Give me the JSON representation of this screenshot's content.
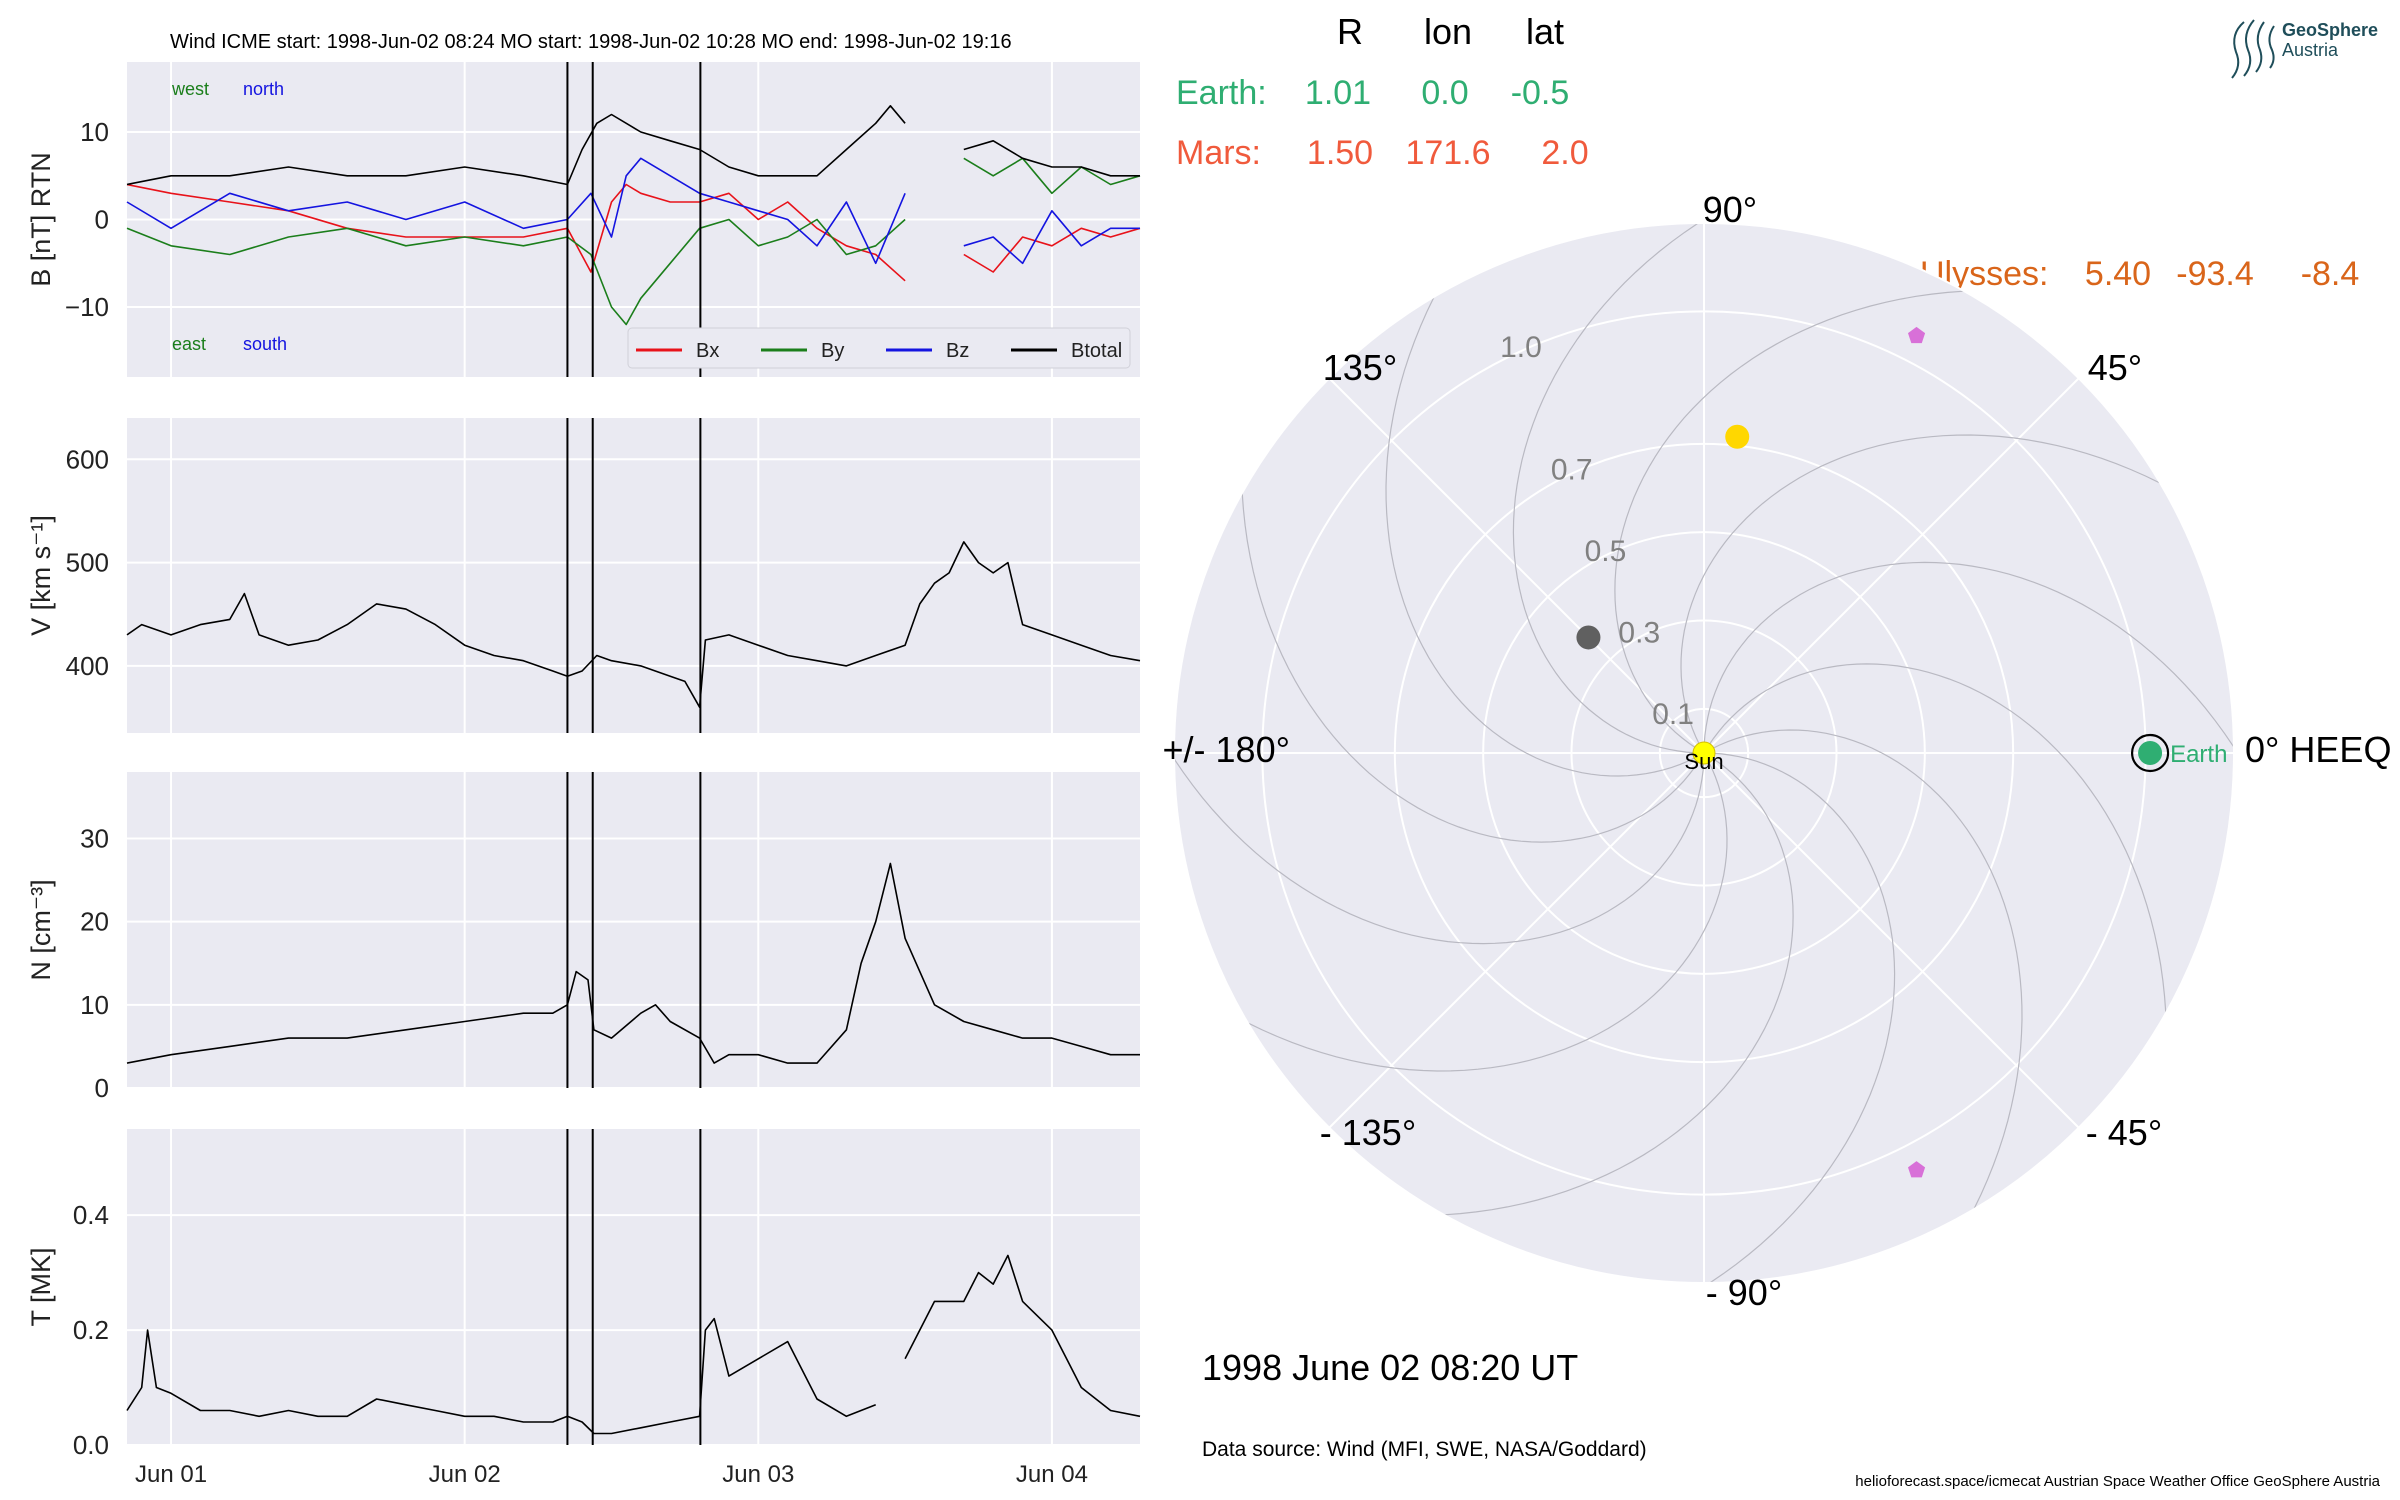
{
  "colors": {
    "panel_bg": "#EAEAF2",
    "grid": "#FFFFFF",
    "bx": "#E8121A",
    "by": "#1B7E1B",
    "bz": "#1414E0",
    "btotal": "#000000",
    "earth": "#2FAE72",
    "mars": "#F05A3C",
    "ulysses": "#D9651A",
    "sun": "#FFFF00",
    "venus": "#FFD700",
    "mercury": "#606060",
    "stereo": "#D870D8"
  },
  "header": {
    "title": "Wind    ICME start: 1998-Jun-02 08:24   MO start: 1998-Jun-02 10:28   MO end: 1998-Jun-02 19:16"
  },
  "logo": {
    "line1": "GeoSphere",
    "line2": "Austria"
  },
  "positions_table": {
    "headers": [
      "R",
      "lon",
      "lat"
    ],
    "rows": [
      {
        "name": "Earth:",
        "r": "1.01",
        "lon": "0.0",
        "lat": "-0.5"
      },
      {
        "name": "Mars:",
        "r": "1.50",
        "lon": "171.6",
        "lat": "2.0"
      },
      {
        "name": "Ulysses:",
        "r": "5.40",
        "lon": "-93.4",
        "lat": "-8.4"
      }
    ]
  },
  "polar": {
    "angle_labels": [
      "90°",
      "45°",
      "0° HEEQ",
      "- 45°",
      "- 90°",
      "- 135°",
      "+/- 180°",
      "135°"
    ],
    "radial_ticks": [
      "0.1",
      "0.3",
      "0.5",
      "0.7",
      "1.0"
    ],
    "radial_values": [
      0.1,
      0.3,
      0.5,
      0.7,
      1.0
    ],
    "r_max": 1.2,
    "sun_label": "Sun",
    "earth_label": "Earth",
    "bodies": [
      {
        "name": "Earth",
        "r": 1.01,
        "lon": 0.0,
        "color_key": "earth"
      },
      {
        "name": "Venus",
        "r": 0.72,
        "lon": 84.0,
        "color_key": "venus"
      },
      {
        "name": "Mercury",
        "r": 0.37,
        "lon": 135.0,
        "color_key": "mercury"
      },
      {
        "name": "Sun",
        "r": 0.0,
        "lon": 0.0,
        "color_key": "sun"
      }
    ],
    "markers": [
      {
        "r": 1.06,
        "lon": 63.0
      },
      {
        "r": 1.06,
        "lon": -63.0
      }
    ]
  },
  "timestamp": "1998 June 02  08:20 UT",
  "data_source": "Data source: Wind (MFI, SWE, NASA/Goddard)",
  "footer": "helioforecast.space/icmecat   Austrian Space Weather Office   GeoSphere Austria",
  "chart_data": [
    {
      "type": "line",
      "ylabel": "B [nT] RTN",
      "ylim": [
        -18,
        18
      ],
      "yticks": [
        10,
        0,
        -10
      ],
      "ytick_labels": [
        "10",
        "0",
        "−10"
      ],
      "annotations": {
        "top_left": "west",
        "top_right": "north",
        "bottom_left": "east",
        "bottom_right": "south"
      },
      "legend": {
        "placement": "lower right",
        "entries": [
          "Bx",
          "By",
          "Bz",
          "Btotal"
        ]
      },
      "x_range": [
        -0.15,
        3.3
      ],
      "event_lines": [
        1.35,
        1.4361,
        1.8028
      ],
      "series": [
        {
          "name": "Bx",
          "color_key": "bx",
          "x": [
            -0.15,
            0.0,
            0.2,
            0.4,
            0.6,
            0.8,
            1.0,
            1.2,
            1.35,
            1.43,
            1.5,
            1.55,
            1.6,
            1.7,
            1.8,
            1.9,
            2.0,
            2.1,
            2.2,
            2.3,
            2.4,
            2.5,
            2.6,
            2.7,
            2.8,
            2.9,
            3.0,
            3.1,
            3.2,
            3.3
          ],
          "y": [
            4,
            3,
            2,
            1,
            -1,
            -2,
            -2,
            -2,
            -1,
            -6,
            2,
            4,
            3,
            2,
            2,
            3,
            0,
            2,
            -1,
            -3,
            -4,
            -7,
            null,
            -4,
            -6,
            -2,
            -3,
            -1,
            -2,
            -1
          ]
        },
        {
          "name": "By",
          "color_key": "by",
          "x": [
            -0.15,
            0.0,
            0.2,
            0.4,
            0.6,
            0.8,
            1.0,
            1.2,
            1.35,
            1.43,
            1.5,
            1.55,
            1.6,
            1.65,
            1.7,
            1.8,
            1.9,
            2.0,
            2.1,
            2.2,
            2.3,
            2.4,
            2.5,
            2.6,
            2.7,
            2.8,
            2.9,
            3.0,
            3.1,
            3.2,
            3.3
          ],
          "y": [
            -1,
            -3,
            -4,
            -2,
            -1,
            -3,
            -2,
            -3,
            -2,
            -4,
            -10,
            -12,
            -9,
            -7,
            -5,
            -1,
            0,
            -3,
            -2,
            0,
            -4,
            -3,
            0,
            null,
            7,
            5,
            7,
            3,
            6,
            4,
            5
          ]
        },
        {
          "name": "Bz",
          "color_key": "bz",
          "x": [
            -0.15,
            0.0,
            0.2,
            0.4,
            0.6,
            0.8,
            1.0,
            1.2,
            1.35,
            1.43,
            1.5,
            1.55,
            1.6,
            1.7,
            1.8,
            1.9,
            2.0,
            2.1,
            2.2,
            2.3,
            2.4,
            2.5,
            2.6,
            2.7,
            2.8,
            2.9,
            3.0,
            3.1,
            3.2,
            3.3
          ],
          "y": [
            2,
            -1,
            3,
            1,
            2,
            0,
            2,
            -1,
            0,
            3,
            -2,
            5,
            7,
            5,
            3,
            2,
            1,
            0,
            -3,
            2,
            -5,
            3,
            null,
            -3,
            -2,
            -5,
            1,
            -3,
            -1,
            -1
          ]
        },
        {
          "name": "Btotal",
          "color_key": "btotal",
          "x": [
            -0.15,
            0.0,
            0.2,
            0.4,
            0.6,
            0.8,
            1.0,
            1.2,
            1.35,
            1.4,
            1.45,
            1.5,
            1.6,
            1.7,
            1.8,
            1.9,
            2.0,
            2.1,
            2.2,
            2.3,
            2.4,
            2.45,
            2.5,
            2.6,
            2.7,
            2.8,
            2.9,
            3.0,
            3.1,
            3.2,
            3.3
          ],
          "y": [
            4,
            5,
            5,
            6,
            5,
            5,
            6,
            5,
            4,
            8,
            11,
            12,
            10,
            9,
            8,
            6,
            5,
            5,
            5,
            8,
            11,
            13,
            11,
            null,
            8,
            9,
            7,
            6,
            6,
            5,
            5
          ]
        }
      ]
    },
    {
      "type": "line",
      "ylabel": "V [km s⁻¹]",
      "ylim": [
        335,
        640
      ],
      "yticks": [
        600,
        500,
        400
      ],
      "ytick_labels": [
        "600",
        "500",
        "400"
      ],
      "x_range": [
        -0.15,
        3.3
      ],
      "event_lines": [
        1.35,
        1.4361,
        1.8028
      ],
      "series": [
        {
          "name": "V",
          "color_key": "btotal",
          "x": [
            -0.15,
            -0.1,
            -0.05,
            0.0,
            0.1,
            0.2,
            0.25,
            0.3,
            0.4,
            0.5,
            0.6,
            0.7,
            0.8,
            0.9,
            1.0,
            1.1,
            1.2,
            1.3,
            1.35,
            1.4,
            1.45,
            1.5,
            1.6,
            1.7,
            1.75,
            1.8,
            1.82,
            1.9,
            2.0,
            2.1,
            2.2,
            2.3,
            2.4,
            2.5,
            2.55,
            2.6,
            2.65,
            2.7,
            2.75,
            2.8,
            2.85,
            2.9,
            3.0,
            3.1,
            3.2,
            3.3
          ],
          "y": [
            430,
            440,
            435,
            430,
            440,
            445,
            470,
            430,
            420,
            425,
            440,
            460,
            455,
            440,
            420,
            410,
            405,
            395,
            390,
            395,
            410,
            405,
            400,
            390,
            385,
            360,
            425,
            430,
            420,
            410,
            405,
            400,
            410,
            420,
            460,
            480,
            490,
            520,
            500,
            490,
            500,
            440,
            430,
            420,
            410,
            405
          ]
        }
      ]
    },
    {
      "type": "line",
      "ylabel": "N [cm⁻³]",
      "ylim": [
        0,
        38
      ],
      "yticks": [
        30,
        20,
        10,
        0
      ],
      "ytick_labels": [
        "30",
        "20",
        "10",
        "0"
      ],
      "x_range": [
        -0.15,
        3.3
      ],
      "event_lines": [
        1.35,
        1.4361,
        1.8028
      ],
      "series": [
        {
          "name": "N",
          "color_key": "btotal",
          "x": [
            -0.15,
            0.0,
            0.2,
            0.4,
            0.6,
            0.8,
            1.0,
            1.2,
            1.3,
            1.35,
            1.38,
            1.42,
            1.44,
            1.5,
            1.6,
            1.65,
            1.7,
            1.8,
            1.85,
            1.9,
            2.0,
            2.1,
            2.2,
            2.3,
            2.35,
            2.4,
            2.45,
            2.5,
            2.55,
            2.6,
            2.7,
            2.8,
            2.9,
            3.0,
            3.1,
            3.2,
            3.3
          ],
          "y": [
            3,
            4,
            5,
            6,
            6,
            7,
            8,
            9,
            9,
            10,
            14,
            13,
            7,
            6,
            9,
            10,
            8,
            6,
            3,
            4,
            4,
            3,
            3,
            7,
            15,
            20,
            27,
            18,
            14,
            10,
            8,
            7,
            6,
            6,
            5,
            4,
            4
          ]
        }
      ]
    },
    {
      "type": "line",
      "ylabel": "T [MK]",
      "ylim": [
        0,
        0.55
      ],
      "yticks": [
        0.4,
        0.2,
        0.0
      ],
      "ytick_labels": [
        "0.4",
        "0.2",
        "0.0"
      ],
      "x_range": [
        -0.15,
        3.3
      ],
      "event_lines": [
        1.35,
        1.4361,
        1.8028
      ],
      "xticks": [
        0,
        1,
        2,
        3
      ],
      "xtick_labels": [
        "Jun 01",
        "Jun 02",
        "Jun 03",
        "Jun 04"
      ],
      "series": [
        {
          "name": "T",
          "color_key": "btotal",
          "x": [
            -0.15,
            -0.1,
            -0.08,
            -0.05,
            0.0,
            0.1,
            0.2,
            0.3,
            0.4,
            0.5,
            0.6,
            0.7,
            0.8,
            0.9,
            1.0,
            1.1,
            1.2,
            1.3,
            1.35,
            1.4,
            1.44,
            1.5,
            1.6,
            1.7,
            1.8,
            1.82,
            1.85,
            1.9,
            2.0,
            2.1,
            2.2,
            2.3,
            2.4,
            2.45,
            2.5,
            2.6,
            2.7,
            2.75,
            2.8,
            2.85,
            2.9,
            3.0,
            3.05,
            3.1,
            3.2,
            3.3
          ],
          "y": [
            0.06,
            0.1,
            0.2,
            0.1,
            0.09,
            0.06,
            0.06,
            0.05,
            0.06,
            0.05,
            0.05,
            0.08,
            0.07,
            0.06,
            0.05,
            0.05,
            0.04,
            0.04,
            0.05,
            0.04,
            0.02,
            0.02,
            0.03,
            0.04,
            0.05,
            0.2,
            0.22,
            0.12,
            0.15,
            0.18,
            0.08,
            0.05,
            0.07,
            null,
            0.15,
            0.25,
            0.25,
            0.3,
            0.28,
            0.33,
            0.25,
            0.2,
            0.15,
            0.1,
            0.06,
            0.05
          ]
        }
      ]
    }
  ]
}
